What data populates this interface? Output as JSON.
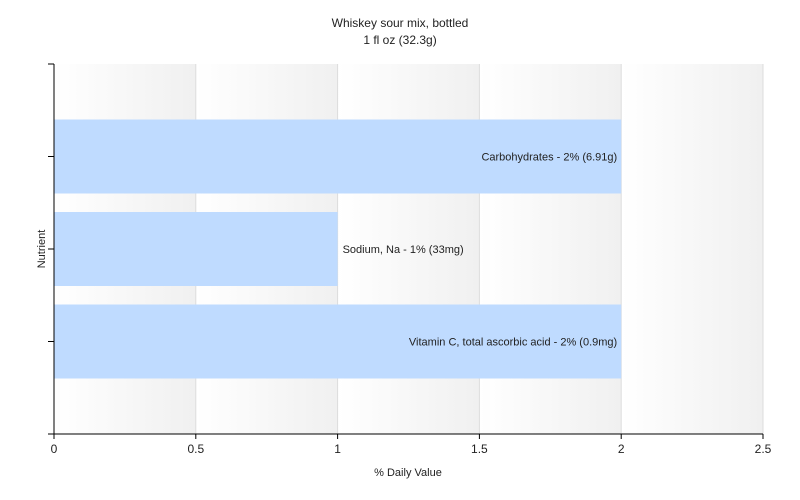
{
  "chart_data": {
    "type": "bar",
    "orientation": "horizontal",
    "title": "Whiskey sour mix, bottled",
    "subtitle": "1 fl oz (32.3g)",
    "xlabel": "% Daily Value",
    "ylabel": "Nutrient",
    "xlim": [
      0,
      2.5
    ],
    "xticks": [
      "0",
      "0.5",
      "1",
      "1.5",
      "2",
      "2.5"
    ],
    "grid": true,
    "legend": "none",
    "bar_color": "#bfdbff",
    "categories": [
      "Carbohydrates",
      "Sodium, Na",
      "Vitamin C, total ascorbic acid"
    ],
    "values": [
      2,
      1,
      2
    ],
    "labels": [
      "Carbohydrates - 2% (6.91g)",
      "Sodium, Na - 1% (33mg)",
      "Vitamin C, total ascorbic acid - 2% (0.9mg)"
    ]
  }
}
